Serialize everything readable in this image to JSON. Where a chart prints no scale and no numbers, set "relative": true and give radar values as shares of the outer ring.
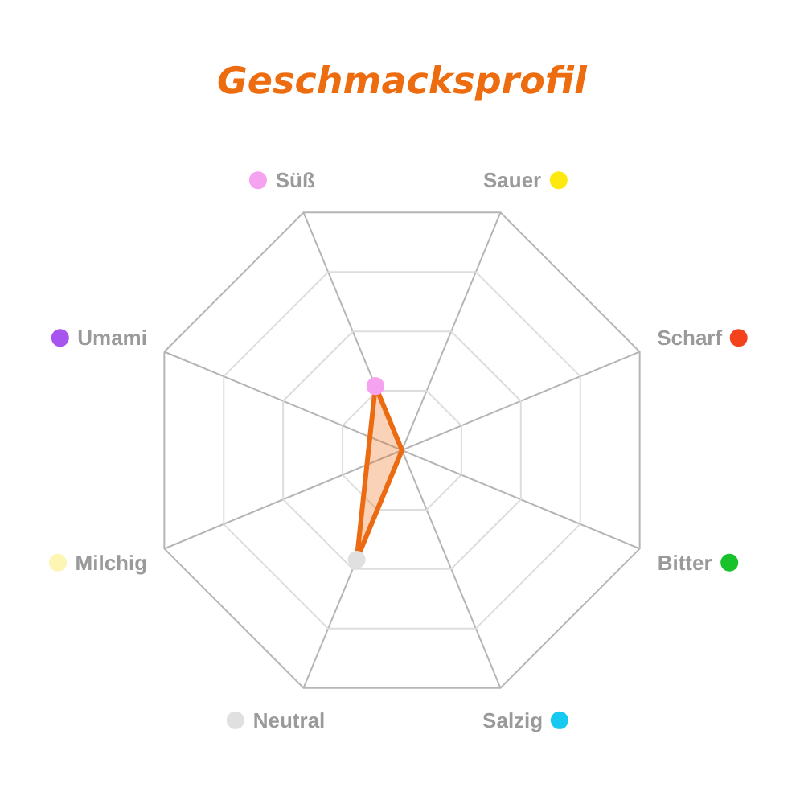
{
  "chart_data": {
    "type": "radar",
    "title": "Geschmacksprofil",
    "relative": true,
    "grid": true,
    "marker": "circle",
    "categories": [
      "Süß",
      "Sauer",
      "Scharf",
      "Bitter",
      "Salzig",
      "Neutral",
      "Milchig",
      "Umami"
    ],
    "colors": [
      "#f5a3f0",
      "#fde910",
      "#f4421d",
      "#19c12b",
      "#15c9f0",
      "#e0e0e0",
      "#fdf5b4",
      "#a855f0"
    ],
    "series": [
      {
        "color": "#ec6b12",
        "values": [
          0.27,
          0,
          0,
          0,
          0,
          0.46,
          null,
          null
        ]
      }
    ]
  }
}
